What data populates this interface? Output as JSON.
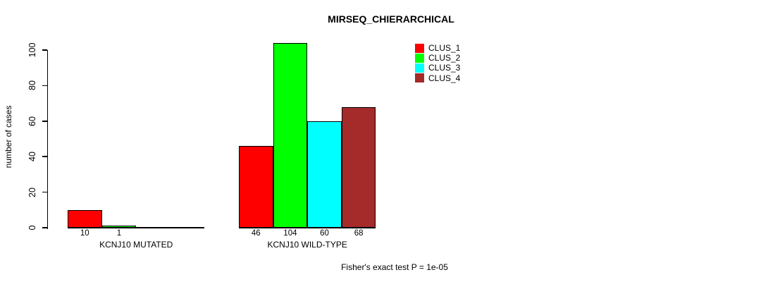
{
  "title": "MIRSEQ_CHIERARCHICAL",
  "footer_note": "Fisher's exact test P = 1e-05",
  "colors": {
    "background": "#ffffff",
    "axis": "#000000",
    "text": "#000000",
    "clus_1": "#ff0000",
    "clus_2": "#00ff00",
    "clus_3": "#00ffff",
    "clus_4": "#a52a2a"
  },
  "legend": {
    "position": "top-right",
    "items": [
      {
        "label": "CLUS_1",
        "color": "#ff0000"
      },
      {
        "label": "CLUS_2",
        "color": "#00ff00"
      },
      {
        "label": "CLUS_3",
        "color": "#00ffff"
      },
      {
        "label": "CLUS_4",
        "color": "#a52a2a"
      }
    ]
  },
  "chart_data": {
    "type": "bar",
    "title": "MIRSEQ_CHIERARCHICAL",
    "ylabel": "number of cases",
    "xlabel": "",
    "categories": [
      "KCNJ10 MUTATED",
      "KCNJ10 WILD-TYPE"
    ],
    "series": [
      {
        "name": "CLUS_1",
        "color": "#ff0000",
        "values": [
          10,
          46
        ]
      },
      {
        "name": "CLUS_2",
        "color": "#00ff00",
        "values": [
          1,
          104
        ]
      },
      {
        "name": "CLUS_3",
        "color": "#00ffff",
        "values": [
          0,
          60
        ]
      },
      {
        "name": "CLUS_4",
        "color": "#a52a2a",
        "values": [
          0,
          68
        ]
      }
    ],
    "bar_value_labels": [
      [
        "10",
        "1",
        "",
        ""
      ],
      [
        "46",
        "104",
        "60",
        "68"
      ]
    ],
    "yticks": [
      0,
      20,
      40,
      60,
      80,
      100
    ],
    "ylim": [
      0,
      104
    ],
    "grid": false,
    "legend_position": "top-right",
    "annotation": "Fisher's exact test P = 1e-05"
  }
}
